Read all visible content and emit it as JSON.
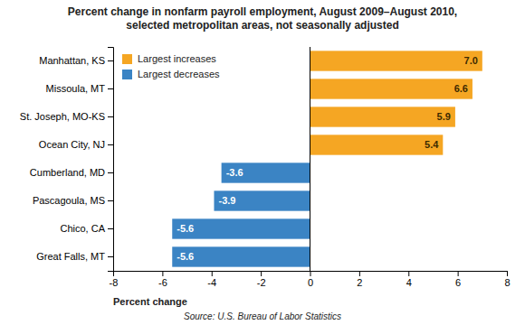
{
  "chart_data": {
    "type": "bar",
    "orientation": "horizontal",
    "title": "Percent change in nonfarm payroll employment, August 2009–August 2010,\nselected metropolitan areas, not seasonally adjusted",
    "categories": [
      "Great Falls, MT",
      "Chico, CA",
      "Pascagoula, MS",
      "Cumberland, MD",
      "Ocean City, NJ",
      "St. Joseph, MO-KS",
      "Missoula, MT",
      "Manhattan, KS"
    ],
    "series": [
      {
        "name": "Largest increases",
        "color": "#F5A623",
        "values": [
          null,
          null,
          null,
          null,
          5.4,
          5.9,
          6.6,
          7.0
        ],
        "value_labels": [
          null,
          null,
          null,
          null,
          "5.4",
          "5.9",
          "6.6",
          "7.0"
        ]
      },
      {
        "name": "Largest decreases",
        "color": "#3B84C4",
        "values": [
          -5.6,
          -5.6,
          -3.9,
          -3.6,
          null,
          null,
          null,
          null
        ],
        "value_labels": [
          "-5.6",
          "-5.6",
          "-3.9",
          "-3.6",
          null,
          null,
          null,
          null
        ]
      }
    ],
    "xlim": [
      -8,
      8
    ],
    "xticks": [
      -8,
      -6,
      -4,
      -2,
      0,
      2,
      4,
      6,
      8
    ],
    "xlabel": "Percent change",
    "source": "Source: U.S. Bureau of Labor Statistics",
    "data_labels": true,
    "legend": "upper left",
    "grid": false
  }
}
